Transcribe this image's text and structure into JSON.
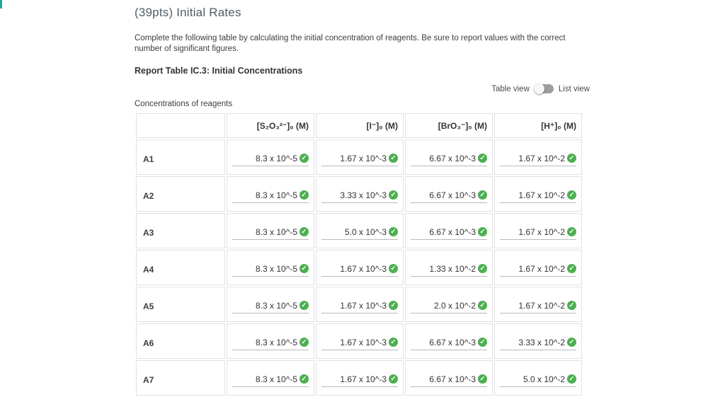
{
  "accent_color": "#26a69a",
  "header": {
    "title": "(39pts) Initial Rates",
    "instructions": "Complete the following table by calculating the initial concentration of reagents. Be sure to report values with the correct number of significant figures.",
    "table_heading": "Report Table IC.3: Initial Concentrations"
  },
  "view_toggle": {
    "table_label": "Table view",
    "list_label": "List view",
    "state": "table"
  },
  "table": {
    "caption": "Concentrations of reagents",
    "columns": [
      "[S₂O₃²⁻]₀ (M)",
      "[I⁻]₀ (M)",
      "[BrO₃⁻]₀ (M)",
      "[H⁺]₀ (M)"
    ],
    "rows": [
      {
        "label": "A1",
        "values": [
          "8.3 x 10^-5",
          "1.67 x 10^-3",
          "6.67 x 10^-3",
          "1.67 x 10^-2"
        ]
      },
      {
        "label": "A2",
        "values": [
          "8.3 x 10^-5",
          "3.33 x 10^-3",
          "6.67 x 10^-3",
          "1.67 x 10^-2"
        ]
      },
      {
        "label": "A3",
        "values": [
          "8.3 x 10^-5",
          "5.0 x 10^-3",
          "6.67 x 10^-3",
          "1.67 x 10^-2"
        ]
      },
      {
        "label": "A4",
        "values": [
          "8.3 x 10^-5",
          "1.67 x 10^-3",
          "1.33 x 10^-2",
          "1.67 x 10^-2"
        ]
      },
      {
        "label": "A5",
        "values": [
          "8.3 x 10^-5",
          "1.67 x 10^-3",
          "2.0 x 10^-2",
          "1.67 x 10^-2"
        ]
      },
      {
        "label": "A6",
        "values": [
          "8.3 x 10^-5",
          "1.67 x 10^-3",
          "6.67 x 10^-3",
          "3.33 x 10^-2"
        ]
      },
      {
        "label": "A7",
        "values": [
          "8.3 x 10^-5",
          "1.67 x 10^-3",
          "6.67 x 10^-3",
          "5.0 x 10^-2"
        ]
      }
    ],
    "status_icon": "check-circle",
    "status_color": "#4caf50"
  }
}
